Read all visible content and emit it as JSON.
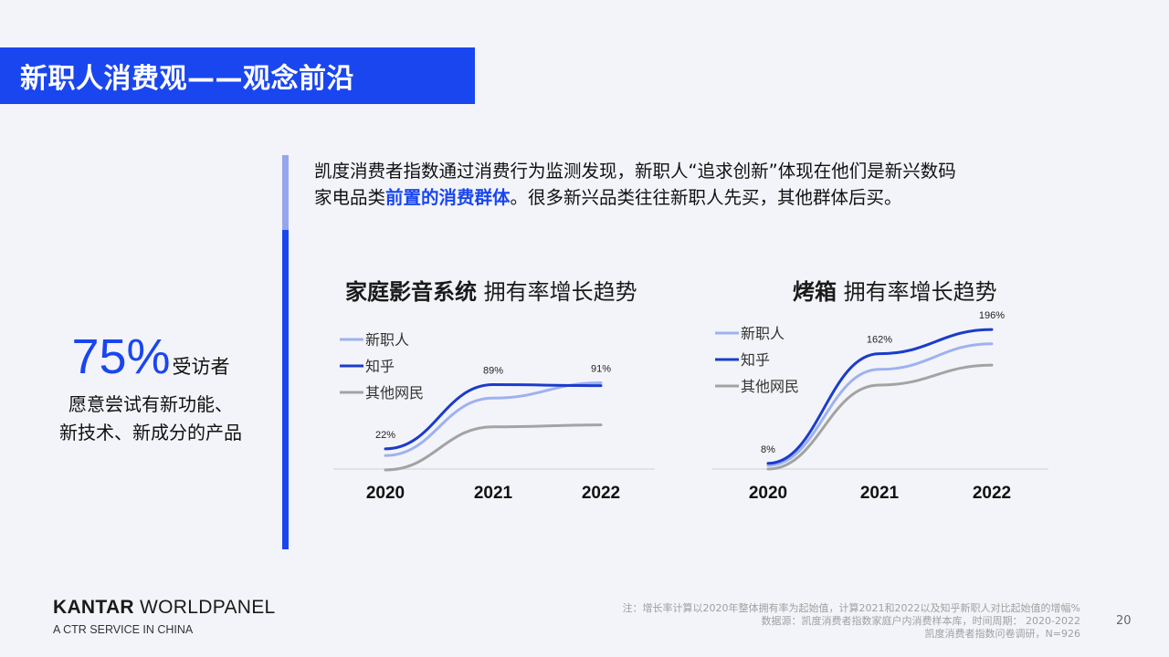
{
  "header": {
    "title": "新职人消费观——观念前沿"
  },
  "stat": {
    "value": "75%",
    "unit": "受访者",
    "desc_line1": "愿意尝试有新功能、",
    "desc_line2": "新技术、新成分的产品"
  },
  "intro": {
    "line1": "凯度消费者指数通过消费行为监测发现，新职人“追求创新”体现在他们是新兴数码",
    "line2_pre": "家电品类",
    "line2_em": "前置的消费群体",
    "line2_post": "。很多新兴品类往往新职人先买，其他群体后买。"
  },
  "chart_data": [
    {
      "type": "line",
      "title_bold": "家庭影音系统",
      "title_rest": " 拥有率增长趋势",
      "categories": [
        "2020",
        "2021",
        "2022"
      ],
      "series": [
        {
          "name": "新职人",
          "color": "#9fb1ef",
          "values": [
            15,
            75,
            91
          ]
        },
        {
          "name": "知乎",
          "color": "#1a3ccc",
          "values": [
            22,
            89,
            88
          ]
        },
        {
          "name": "其他网民",
          "color": "#a3a3a3",
          "values": [
            0,
            45,
            47
          ]
        }
      ],
      "data_labels": [
        {
          "series": 1,
          "index": 0,
          "text": "22%"
        },
        {
          "series": 1,
          "index": 1,
          "text": "89%"
        },
        {
          "series": 0,
          "index": 2,
          "text": "91%"
        }
      ],
      "legend": "top-left",
      "ylim": [
        0,
        100
      ]
    },
    {
      "type": "line",
      "title_bold": "烤箱",
      "title_rest": " 拥有率增长趋势",
      "categories": [
        "2020",
        "2021",
        "2022"
      ],
      "series": [
        {
          "name": "新职人",
          "color": "#9fb1ef",
          "values": [
            5,
            140,
            176
          ]
        },
        {
          "name": "知乎",
          "color": "#1a3ccc",
          "values": [
            8,
            162,
            196
          ]
        },
        {
          "name": "其他网民",
          "color": "#a3a3a3",
          "values": [
            0,
            118,
            146
          ]
        }
      ],
      "data_labels": [
        {
          "series": 1,
          "index": 0,
          "text": "8%"
        },
        {
          "series": 1,
          "index": 1,
          "text": "162%"
        },
        {
          "series": 1,
          "index": 2,
          "text": "196%"
        }
      ],
      "legend": "top-left",
      "ylim": [
        0,
        200
      ]
    }
  ],
  "logo": {
    "brand_bold": "KANTAR",
    "brand_rest": " WORLDPANEL",
    "tagline": "A CTR SERVICE IN CHINA"
  },
  "footnotes": [
    "注：增长率计算以2020年整体拥有率为起始值，计算2021和2022以及知乎新职人对比起始值的增幅%",
    "数据源：凯度消费者指数家庭户内消费样本库，时间周期： 2020-2022",
    "凯度消费者指数问卷调研，N=926"
  ],
  "page_number": "20"
}
